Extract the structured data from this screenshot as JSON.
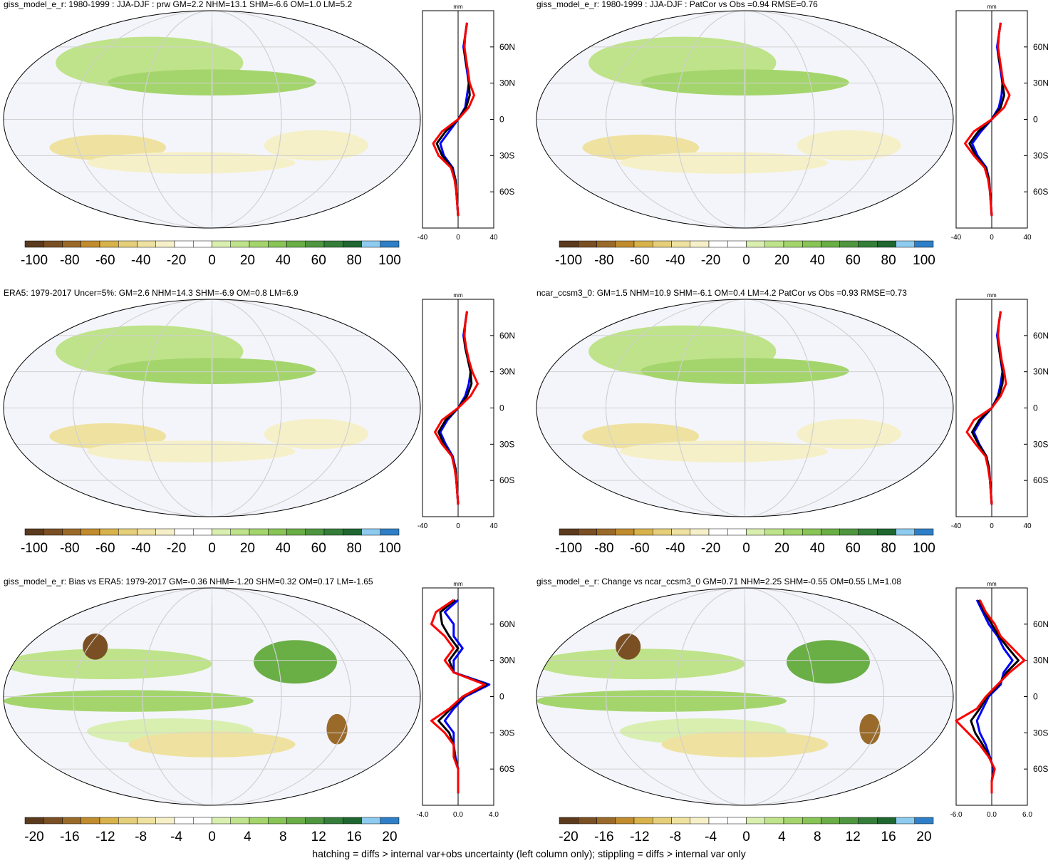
{
  "footer": "hatching = diffs > internal var+obs uncertainty (left column only); stippling = diffs > internal var only",
  "colors": {
    "obs_line": "#0000ff",
    "model_line": "#ff0000",
    "ref_line": "#000000",
    "ocean_bg": "#f4f5fb"
  },
  "palette": [
    "#5b3a1e",
    "#7a4f24",
    "#9a6a2a",
    "#c08c2e",
    "#d8b24a",
    "#e6cf7a",
    "#efe2a0",
    "#f6f0c8",
    "#ffffff",
    "#ffffff",
    "#d9efb0",
    "#bfe38a",
    "#a4d56c",
    "#88c456",
    "#6aae46",
    "#4f9640",
    "#357e3a",
    "#1f6630",
    "#8ecbf0",
    "#2f7fc8"
  ],
  "chart_data": [
    {
      "type": "heatmap",
      "panel": "top-left",
      "title": "giss_model_e_r: 1980-1999 : JJA-DJF : prw GM=2.2 NHM=13.1 SHM=-6.6 OM=1.0 LM=5.2",
      "colorbar_ticks": [
        "-100",
        "-80",
        "-60",
        "-40",
        "-20",
        "0",
        "20",
        "40",
        "60",
        "80",
        "100"
      ],
      "profile_unit": "mm",
      "profile_x_ticks": [
        "-40",
        "0",
        "40"
      ],
      "profile_xlim": [
        -40,
        40
      ],
      "lat_ticks": [
        "60N",
        "30N",
        "0",
        "30S",
        "60S"
      ],
      "profile_lat": [
        80,
        70,
        60,
        50,
        40,
        30,
        20,
        10,
        0,
        -10,
        -20,
        -30,
        -40,
        -50,
        -60,
        -70,
        -80
      ],
      "series": [
        {
          "values": [
            10,
            8,
            7,
            9,
            11,
            13,
            18,
            12,
            0,
            -18,
            -28,
            -22,
            -8,
            -4,
            -2,
            -1,
            0
          ]
        },
        {
          "values": [
            10,
            8,
            6,
            8,
            10,
            12,
            10,
            8,
            0,
            -10,
            -20,
            -16,
            -6,
            -3,
            -2,
            -1,
            0
          ]
        },
        {
          "values": [
            10,
            8,
            7,
            8,
            11,
            12,
            13,
            9,
            0,
            -14,
            -24,
            -18,
            -7,
            -3,
            -2,
            -1,
            0
          ]
        }
      ]
    },
    {
      "type": "heatmap",
      "panel": "top-right",
      "title": "giss_model_e_r: 1980-1999 : JJA-DJF : PatCor vs Obs =0.94 RMSE=0.76",
      "colorbar_ticks": [
        "-100",
        "-80",
        "-60",
        "-40",
        "-20",
        "0",
        "20",
        "40",
        "60",
        "80",
        "100"
      ],
      "profile_unit": "mm",
      "profile_x_ticks": [
        "-40",
        "0",
        "40"
      ],
      "profile_xlim": [
        -40,
        40
      ],
      "lat_ticks": [
        "60N",
        "30N",
        "0",
        "30S",
        "60S"
      ],
      "profile_lat": [
        80,
        70,
        60,
        50,
        40,
        30,
        20,
        10,
        0,
        -10,
        -20,
        -30,
        -40,
        -50,
        -60,
        -70,
        -80
      ],
      "series": [
        {
          "values": [
            10,
            8,
            7,
            9,
            11,
            13,
            20,
            14,
            0,
            -20,
            -30,
            -20,
            -8,
            -4,
            -2,
            -1,
            0
          ]
        },
        {
          "values": [
            10,
            8,
            6,
            8,
            10,
            12,
            11,
            8,
            0,
            -12,
            -22,
            -16,
            -6,
            -3,
            -2,
            -1,
            0
          ]
        },
        {
          "values": [
            10,
            8,
            7,
            8,
            11,
            12,
            14,
            10,
            0,
            -15,
            -25,
            -18,
            -7,
            -3,
            -2,
            -1,
            0
          ]
        }
      ]
    },
    {
      "type": "heatmap",
      "panel": "middle-left",
      "title": "ERA5: 1979-2017 Uncer=5%: GM=2.6 NHM=14.3 SHM=-6.9 OM=0.8 LM=6.9",
      "colorbar_ticks": [
        "-100",
        "-80",
        "-60",
        "-40",
        "-20",
        "0",
        "20",
        "40",
        "60",
        "80",
        "100"
      ],
      "profile_unit": "mm",
      "profile_x_ticks": [
        "-40",
        "0",
        "40"
      ],
      "profile_xlim": [
        -40,
        40
      ],
      "lat_ticks": [
        "60N",
        "30N",
        "0",
        "30S",
        "60S"
      ],
      "profile_lat": [
        80,
        70,
        60,
        50,
        40,
        30,
        20,
        10,
        0,
        -10,
        -20,
        -30,
        -40,
        -50,
        -60,
        -70,
        -80
      ],
      "series": [
        {
          "values": [
            10,
            8,
            7,
            9,
            12,
            16,
            22,
            14,
            0,
            -18,
            -26,
            -18,
            -7,
            -4,
            -2,
            -1,
            0
          ]
        },
        {
          "values": [
            10,
            8,
            6,
            8,
            11,
            14,
            12,
            8,
            0,
            -12,
            -20,
            -14,
            -6,
            -3,
            -2,
            -1,
            0
          ]
        },
        {
          "values": [
            10,
            8,
            7,
            8,
            11,
            14,
            15,
            10,
            0,
            -14,
            -22,
            -16,
            -7,
            -3,
            -2,
            -1,
            0
          ]
        }
      ]
    },
    {
      "type": "heatmap",
      "panel": "middle-right",
      "title": "ncar_ccsm3_0: GM=1.5 NHM=10.9 SHM=-6.1 OM=0.4 LM=4.2 PatCor vs Obs =0.93 RMSE=0.73",
      "colorbar_ticks": [
        "-100",
        "-80",
        "-60",
        "-40",
        "-20",
        "0",
        "20",
        "40",
        "60",
        "80",
        "100"
      ],
      "profile_unit": "mm",
      "profile_x_ticks": [
        "-40",
        "0",
        "40"
      ],
      "profile_xlim": [
        -40,
        40
      ],
      "lat_ticks": [
        "60N",
        "30N",
        "0",
        "30S",
        "60S"
      ],
      "profile_lat": [
        80,
        70,
        60,
        50,
        40,
        30,
        20,
        10,
        0,
        -10,
        -20,
        -30,
        -40,
        -50,
        -60,
        -70,
        -80
      ],
      "series": [
        {
          "values": [
            10,
            8,
            7,
            9,
            11,
            14,
            16,
            10,
            0,
            -20,
            -28,
            -18,
            -7,
            -4,
            -2,
            -1,
            0
          ]
        },
        {
          "values": [
            10,
            8,
            6,
            8,
            10,
            12,
            10,
            7,
            0,
            -12,
            -20,
            -14,
            -6,
            -3,
            -2,
            -1,
            0
          ]
        },
        {
          "values": [
            10,
            8,
            7,
            8,
            10,
            13,
            12,
            8,
            0,
            -14,
            -22,
            -15,
            -6,
            -3,
            -2,
            -1,
            0
          ]
        }
      ]
    },
    {
      "type": "heatmap",
      "panel": "bottom-left",
      "title": "giss_model_e_r: Bias vs ERA5: 1979-2017 GM=-0.36 NHM=-1.20 SHM=0.32 OM=0.17 LM=-1.65",
      "colorbar_ticks": [
        "-20",
        "-16",
        "-12",
        "-8",
        "-4",
        "0",
        "4",
        "8",
        "12",
        "16",
        "20"
      ],
      "profile_unit": "mm",
      "profile_x_ticks": [
        "-4.0",
        "0.0",
        "4.0"
      ],
      "profile_xlim": [
        -4,
        4
      ],
      "lat_ticks": [
        "60N",
        "30N",
        "0",
        "30S",
        "60S"
      ],
      "profile_lat": [
        80,
        70,
        60,
        50,
        40,
        30,
        20,
        10,
        0,
        -10,
        -20,
        -30,
        -40,
        -50,
        -60,
        -70,
        -80
      ],
      "series": [
        {
          "values": [
            -0.5,
            -2.5,
            -3.0,
            -1.5,
            -0.5,
            -1.5,
            -0.5,
            3.0,
            0.5,
            -1.0,
            -3.0,
            -1.5,
            -0.5,
            -0.5,
            0.0,
            0.0,
            0.0
          ]
        },
        {
          "values": [
            0.0,
            -1.5,
            -0.5,
            -0.5,
            0.5,
            -0.5,
            -0.5,
            3.5,
            0.8,
            -0.5,
            -1.5,
            -0.5,
            -0.5,
            -0.3,
            0.0,
            0.0,
            0.0
          ]
        },
        {
          "values": [
            -0.3,
            -2.0,
            -1.8,
            -1.0,
            0.0,
            -1.0,
            -0.5,
            3.2,
            0.6,
            -0.8,
            -2.2,
            -1.0,
            -0.5,
            -0.4,
            0.0,
            0.0,
            0.0
          ]
        }
      ]
    },
    {
      "type": "heatmap",
      "panel": "bottom-right",
      "title": "giss_model_e_r: Change vs ncar_ccsm3_0 GM=0.71 NHM=2.25 SHM=-0.55 OM=0.55 LM=1.08",
      "colorbar_ticks": [
        "-20",
        "-16",
        "-12",
        "-8",
        "-4",
        "0",
        "4",
        "8",
        "12",
        "16",
        "20"
      ],
      "profile_unit": "mm",
      "profile_x_ticks": [
        "-6.0",
        "0.0",
        "6.0"
      ],
      "profile_xlim": [
        -6,
        6
      ],
      "lat_ticks": [
        "60N",
        "30N",
        "0",
        "30S",
        "60S"
      ],
      "profile_lat": [
        80,
        70,
        60,
        50,
        40,
        30,
        20,
        10,
        0,
        -10,
        -20,
        -30,
        -40,
        -50,
        -60,
        -70,
        -80
      ],
      "series": [
        {
          "values": [
            -2.0,
            -1.0,
            0.5,
            1.5,
            3.5,
            5.5,
            3.0,
            1.0,
            -1.0,
            -2.5,
            -6.0,
            -4.0,
            -2.0,
            -0.5,
            0.5,
            0.0,
            0.0
          ]
        },
        {
          "values": [
            -2.5,
            -1.5,
            -0.5,
            1.0,
            2.0,
            3.5,
            2.0,
            1.5,
            -0.5,
            -1.5,
            -2.5,
            -2.0,
            -1.0,
            -0.3,
            0.3,
            0.0,
            0.0
          ]
        },
        {
          "values": [
            -2.2,
            -1.2,
            0.0,
            1.2,
            2.8,
            4.5,
            2.5,
            1.2,
            -0.8,
            -2.0,
            -3.5,
            -2.8,
            -1.5,
            -0.4,
            0.4,
            0.0,
            0.0
          ]
        }
      ]
    }
  ]
}
